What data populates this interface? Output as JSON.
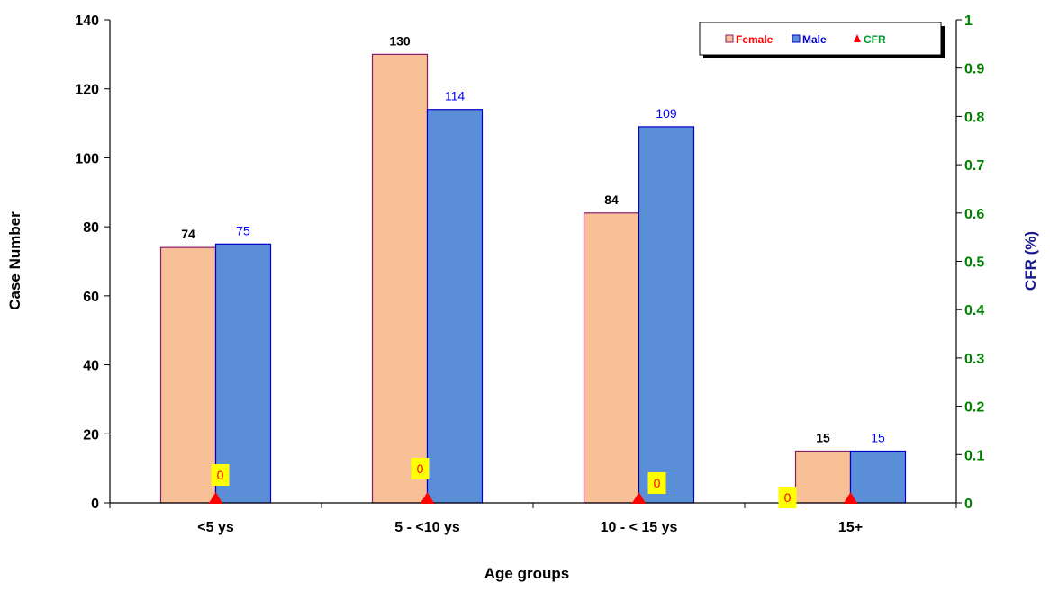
{
  "chart_data": {
    "type": "bar",
    "categories": [
      "<5 ys",
      "5 - <10 ys",
      "10 - < 15 ys",
      "15+"
    ],
    "series": [
      {
        "name": "Female",
        "values": [
          74,
          130,
          84,
          15
        ],
        "color": "#f8c096",
        "border": "#8b1a6b",
        "label_color": "#000000"
      },
      {
        "name": "Male",
        "values": [
          75,
          114,
          109,
          15
        ],
        "color": "#5a8fd8",
        "border": "#0000cc",
        "label_color": "#0000ff"
      }
    ],
    "line_series": {
      "name": "CFR",
      "values": [
        0,
        0,
        0,
        0
      ],
      "labels": [
        "0",
        "0",
        "0",
        "0"
      ],
      "marker": "triangle",
      "color": "#ff0000",
      "label_bg": "#ffff00",
      "axis": "right"
    },
    "xlabel": "Age groups",
    "ylabel": "Case Number",
    "y2label": "CFR (%)",
    "ylim": [
      0,
      140
    ],
    "y2lim": [
      0,
      1
    ],
    "yticks": [
      "0",
      "20",
      "40",
      "60",
      "80",
      "100",
      "120",
      "140"
    ],
    "y2ticks": [
      "0",
      "0.1",
      "0.2",
      "0.3",
      "0.4",
      "0.5",
      "0.6",
      "0.7",
      "0.8",
      "0.9",
      "1"
    ],
    "legend": {
      "position": "top-right",
      "entries": [
        "Female",
        "Male",
        "CFR"
      ]
    },
    "grid": false,
    "colors": {
      "left_axis_text": "#000000",
      "right_axis_text": "#008000",
      "y2_title": "#1a1a8c",
      "female_legend": "#ff0000",
      "male_legend": "#0000cc",
      "cfr_legend": "#009933"
    }
  }
}
